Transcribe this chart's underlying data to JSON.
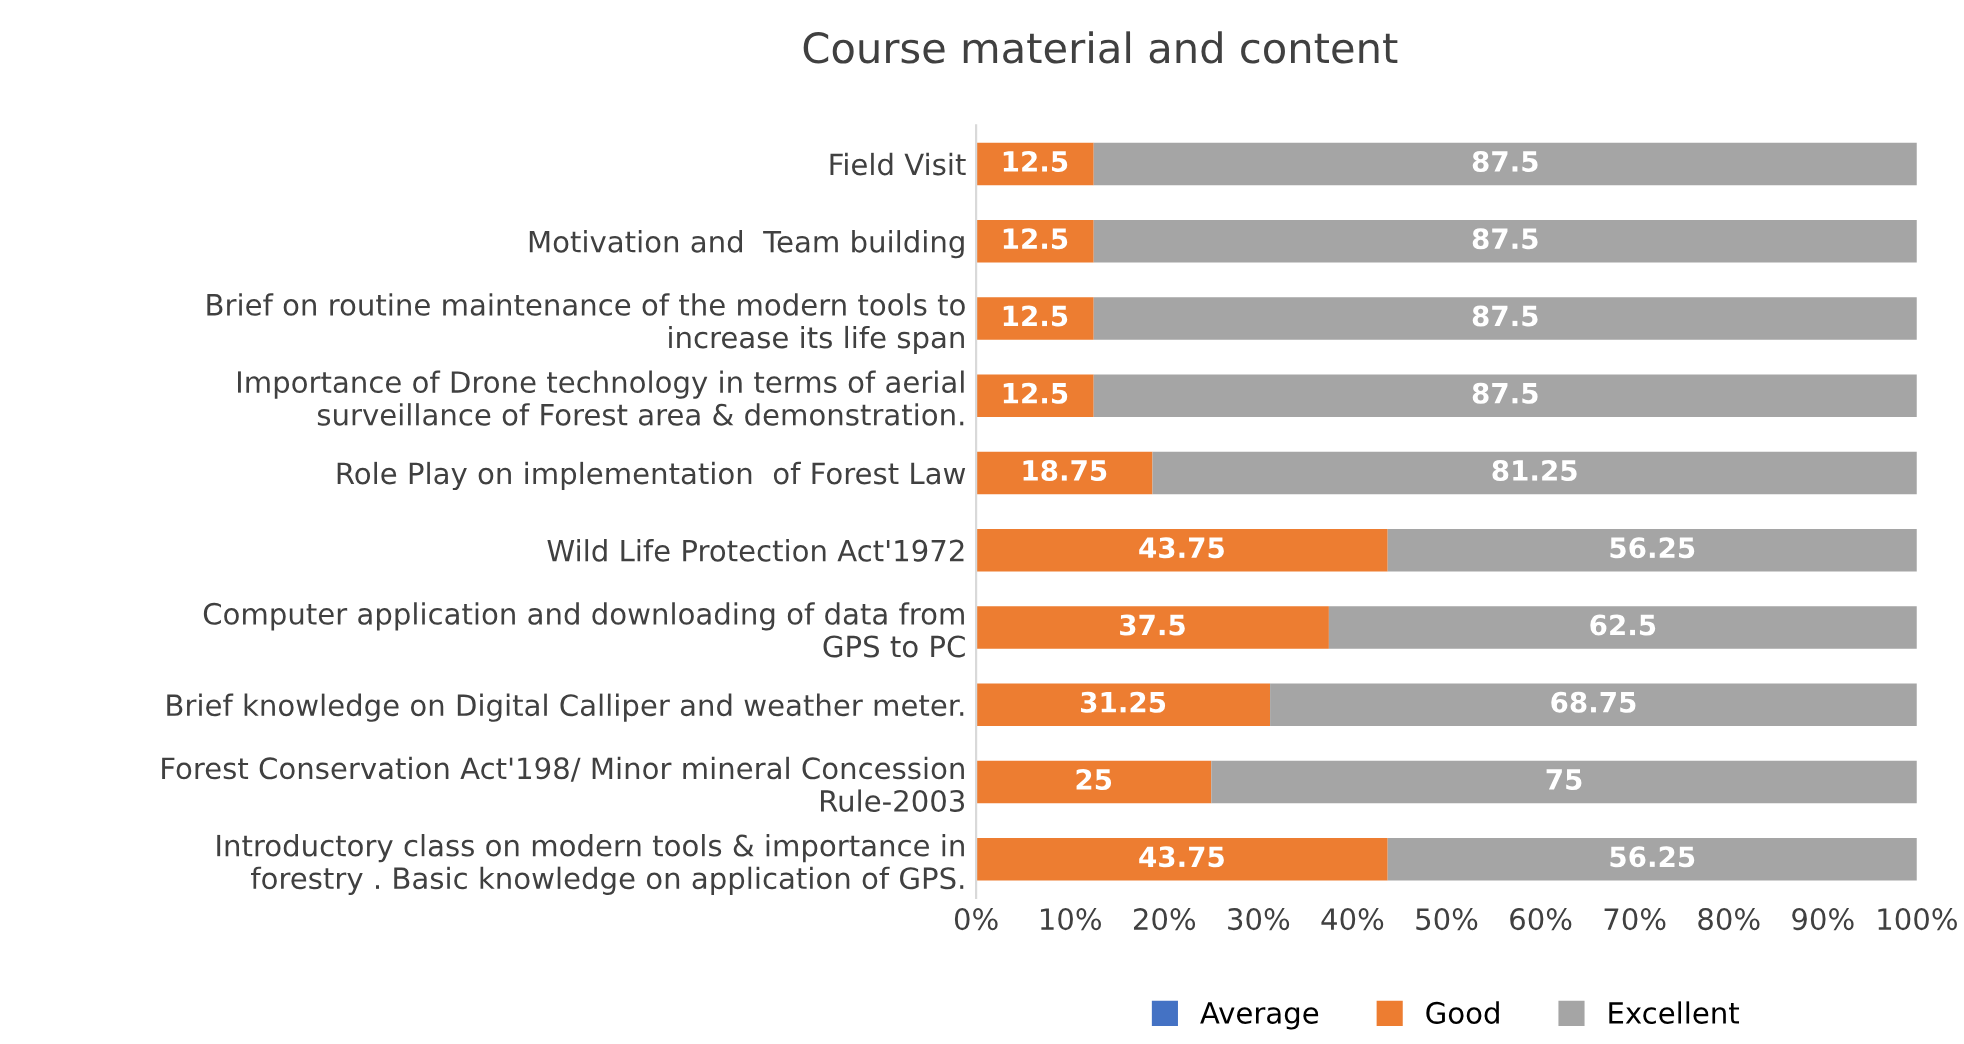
{
  "chart_data": {
    "type": "bar",
    "orientation": "horizontal",
    "stacked": true,
    "title": "Course material and content",
    "categories": [
      "Field Visit",
      "Motivation and  Team building",
      "Brief on routine maintenance of the modern tools to\nincrease its life span",
      "Importance of Drone technology in terms of aerial\nsurveillance of Forest area & demonstration.",
      "Role Play on implementation  of Forest Law",
      "Wild Life Protection Act'1972",
      "Computer application and downloading of data from\nGPS to PC",
      "Brief knowledge on Digital Calliper and weather meter.",
      "Forest Conservation Act'198/ Minor mineral Concession\nRule-2003",
      "Introductory class on modern tools & importance in\nforestry . Basic knowledge on application of GPS."
    ],
    "series": [
      {
        "name": "Average",
        "color": "#4472c4",
        "values": [
          0,
          0,
          0,
          0,
          0,
          0,
          0,
          0,
          0,
          0
        ],
        "value_labels": [
          null,
          null,
          null,
          null,
          null,
          null,
          null,
          null,
          null,
          null
        ]
      },
      {
        "name": "Good",
        "color": "#ed7d31",
        "values": [
          12.5,
          12.5,
          12.5,
          12.5,
          18.75,
          43.75,
          37.5,
          31.25,
          25,
          43.75
        ],
        "value_labels": [
          "12.5",
          "12.5",
          "12.5",
          "12.5",
          "18.75",
          "43.75",
          "37.5",
          "31.25",
          "25",
          "43.75"
        ]
      },
      {
        "name": "Excellent",
        "color": "#a5a5a5",
        "values": [
          87.5,
          87.5,
          87.5,
          87.5,
          81.25,
          56.25,
          62.5,
          68.75,
          75,
          56.25
        ],
        "value_labels": [
          "87.5",
          "87.5",
          "87.5",
          "87.5",
          "81.25",
          "56.25",
          "62.5",
          "68.75",
          "75",
          "56.25"
        ]
      }
    ],
    "xlim": [
      0,
      100
    ],
    "xticks": [
      {
        "value": 0,
        "label": "0%"
      },
      {
        "value": 10,
        "label": "10%"
      },
      {
        "value": 20,
        "label": "20%"
      },
      {
        "value": 30,
        "label": "30%"
      },
      {
        "value": 40,
        "label": "40%"
      },
      {
        "value": 50,
        "label": "50%"
      },
      {
        "value": 60,
        "label": "60%"
      },
      {
        "value": 70,
        "label": "70%"
      },
      {
        "value": 80,
        "label": "80%"
      },
      {
        "value": 90,
        "label": "90%"
      },
      {
        "value": 100,
        "label": "100%"
      }
    ],
    "grid": false,
    "legend": "bottom"
  }
}
